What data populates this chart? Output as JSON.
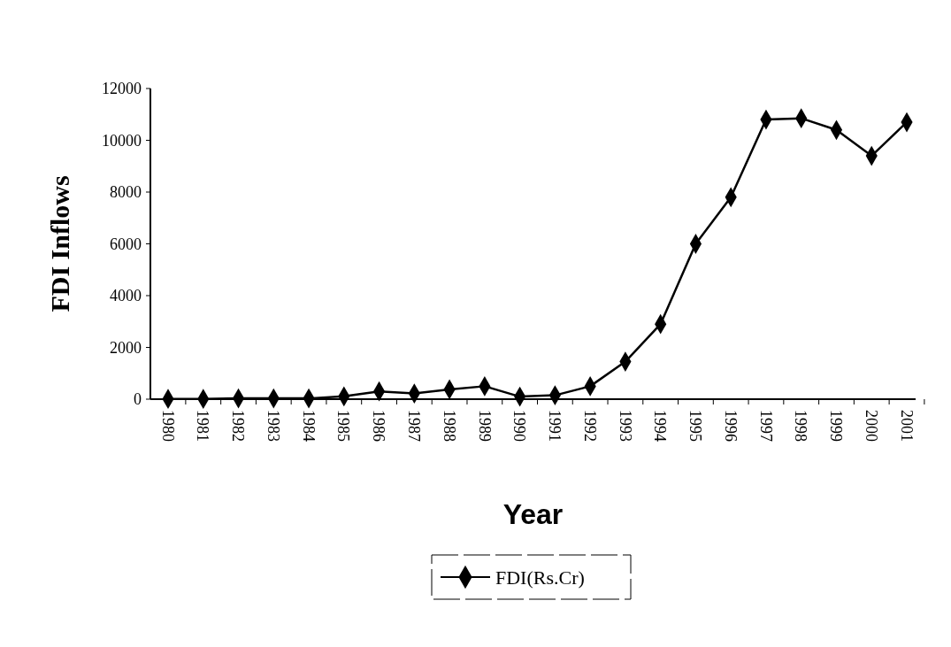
{
  "chart_data": {
    "type": "line",
    "xlabel": "Year",
    "ylabel": "FDI Inflows",
    "categories": [
      "1980",
      "1981",
      "1982",
      "1983",
      "1984",
      "1985",
      "1986",
      "1987",
      "1988",
      "1989",
      "1990",
      "1991",
      "1992",
      "1993",
      "1994",
      "1995",
      "1996",
      "1997",
      "1998",
      "1999",
      "2000",
      "2001"
    ],
    "series": [
      {
        "name": "FDI(Rs.Cr)",
        "color": "#000000",
        "values": [
          10,
          10,
          30,
          30,
          30,
          110,
          300,
          220,
          380,
          500,
          100,
          150,
          500,
          1450,
          2900,
          6000,
          7800,
          10800,
          10850,
          10400,
          9400,
          10700
        ]
      }
    ],
    "ylim": [
      0,
      12000
    ],
    "yticks": [
      0,
      2000,
      4000,
      6000,
      8000,
      10000,
      12000
    ],
    "legend": "bottom",
    "marker": "diamond",
    "line_style": "solid"
  }
}
